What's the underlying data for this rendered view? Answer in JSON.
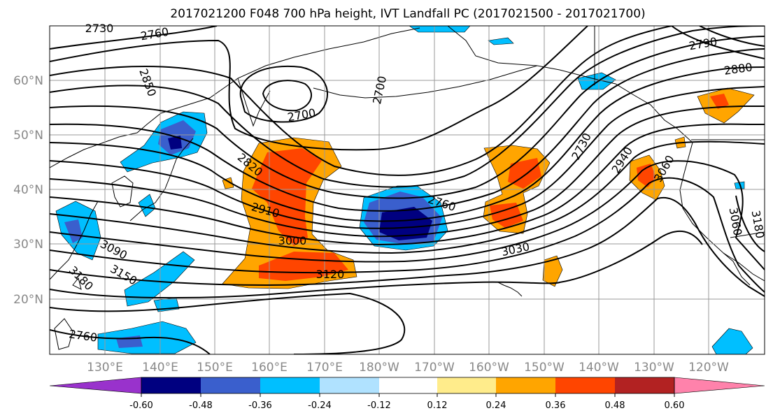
{
  "title": "2017021200 F048 700 hPa height, IVT Landfall PC (2017021500 - 2017021700)",
  "lat_labels": [
    "60°N",
    "50°N",
    "40°N",
    "30°N",
    "20°N"
  ],
  "lon_labels": [
    "130°E",
    "140°E",
    "150°E",
    "160°E",
    "170°E",
    "180°W",
    "170°W",
    "160°W",
    "150°W",
    "140°W",
    "130°W",
    "120°W"
  ],
  "contour_labels": [
    "2730",
    "2760",
    "2790",
    "2880",
    "2850",
    "2700",
    "2700",
    "2820",
    "2910",
    "3000",
    "3090",
    "3180",
    "3150",
    "3120",
    "2760",
    "3030",
    "2730",
    "2940",
    "3060",
    "3060",
    "3180",
    "2760"
  ],
  "colorbar": {
    "colors": [
      "#9932cc",
      "#000080",
      "#3a5fcd",
      "#00bfff",
      "#b0e2ff",
      "#ffffff",
      "#ffffff",
      "#ffec8b",
      "#ffa500",
      "#ff4500",
      "#b22222",
      "#ff82ab"
    ],
    "tick_labels": [
      "-0.60",
      "-0.48",
      "-0.36",
      "-0.24",
      "-0.12",
      "0.12",
      "0.24",
      "0.36",
      "0.48",
      "0.60"
    ]
  }
}
